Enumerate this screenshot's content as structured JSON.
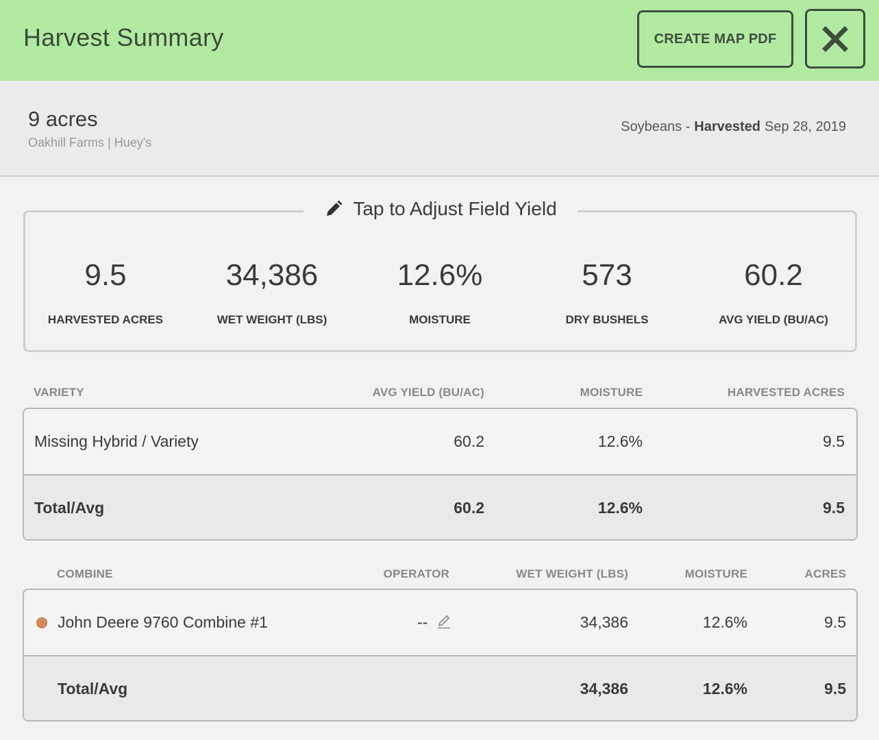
{
  "header": {
    "title": "Harvest Summary",
    "pdf_label": "CREATE MAP PDF"
  },
  "field": {
    "acres": "9 acres",
    "farm": "Oakhill Farms | Huey's",
    "crop": "Soybeans -",
    "status": "Harvested",
    "date": "Sep 28, 2019"
  },
  "yield_box": {
    "adjust_label": "Tap to Adjust Field Yield",
    "stats": [
      {
        "value": "9.5",
        "label": "HARVESTED ACRES"
      },
      {
        "value": "34,386",
        "label": "WET WEIGHT (LBS)"
      },
      {
        "value": "12.6%",
        "label": "MOISTURE"
      },
      {
        "value": "573",
        "label": "DRY BUSHELS"
      },
      {
        "value": "60.2",
        "label": "AVG YIELD (BU/AC)"
      }
    ]
  },
  "variety_table": {
    "headers": [
      "VARIETY",
      "AVG YIELD (BU/AC)",
      "MOISTURE",
      "HARVESTED ACRES"
    ],
    "rows": [
      {
        "variety": "Missing Hybrid / Variety",
        "yield": "60.2",
        "moisture": "12.6%",
        "acres": "9.5"
      }
    ],
    "total": {
      "label": "Total/Avg",
      "yield": "60.2",
      "moisture": "12.6%",
      "acres": "9.5"
    }
  },
  "combine_table": {
    "headers": [
      "COMBINE",
      "OPERATOR",
      "WET WEIGHT (LBS)",
      "MOISTURE",
      "ACRES"
    ],
    "rows": [
      {
        "combine": "John Deere 9760 Combine #1",
        "operator": "--",
        "weight": "34,386",
        "moisture": "12.6%",
        "acres": "9.5",
        "dot_color": "#d8895a"
      }
    ],
    "total": {
      "label": "Total/Avg",
      "weight": "34,386",
      "moisture": "12.6%",
      "acres": "9.5"
    }
  },
  "colors": {
    "header_bg": "#b2eaa2",
    "accent_dark": "#3f4d3e"
  }
}
